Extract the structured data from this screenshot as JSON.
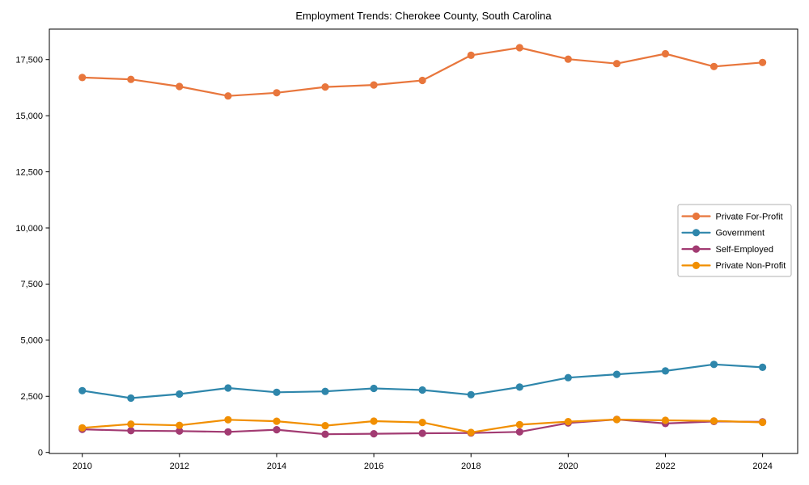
{
  "page": {
    "background": "#ffffff"
  },
  "chart_data": {
    "type": "line",
    "title": "Employment Trends: Cherokee County, South Carolina",
    "xlabel": "",
    "ylabel": "",
    "grid": false,
    "legend_position": "center-right",
    "legend_border_color": "#b0b0b0",
    "axis_color": "#000000",
    "xlim": [
      2009.3225,
      2024.7225
    ],
    "ylim": [
      -47,
      18858
    ],
    "x": [
      2010,
      2011,
      2012,
      2013,
      2014,
      2015,
      2016,
      2017,
      2018,
      2019,
      2020,
      2021,
      2022,
      2023,
      2024
    ],
    "x_ticks": {
      "values": [
        2010,
        2012,
        2014,
        2016,
        2018,
        2020,
        2022,
        2024
      ],
      "labels": [
        "2010",
        "2012",
        "2014",
        "2016",
        "2018",
        "2020",
        "2022",
        "2024"
      ]
    },
    "y_ticks": {
      "values": [
        0,
        2500,
        5000,
        7500,
        10000,
        12500,
        15000,
        17500
      ],
      "labels": [
        "0",
        "2,500",
        "5,000",
        "7,500",
        "10,000",
        "12,500",
        "15,000",
        "17,500"
      ]
    },
    "series": [
      {
        "name": "Private For-Profit",
        "color": "#E8763C",
        "values": [
          16700,
          16620,
          16300,
          15880,
          16020,
          16280,
          16370,
          16570,
          17690,
          18030,
          17520,
          17320,
          17760,
          17190,
          17370
        ]
      },
      {
        "name": "Government",
        "color": "#2E86AB",
        "values": [
          2750,
          2420,
          2600,
          2870,
          2680,
          2720,
          2850,
          2780,
          2570,
          2910,
          3330,
          3480,
          3630,
          3920,
          3790
        ]
      },
      {
        "name": "Self-Employed",
        "color": "#A23B72",
        "values": [
          1030,
          970,
          950,
          915,
          1010,
          810,
          830,
          855,
          865,
          915,
          1310,
          1470,
          1290,
          1380,
          1360
        ]
      },
      {
        "name": "Private Non-Profit",
        "color": "#F18F01",
        "values": [
          1095,
          1260,
          1205,
          1455,
          1390,
          1190,
          1395,
          1335,
          890,
          1235,
          1370,
          1465,
          1430,
          1405,
          1340
        ]
      }
    ]
  }
}
